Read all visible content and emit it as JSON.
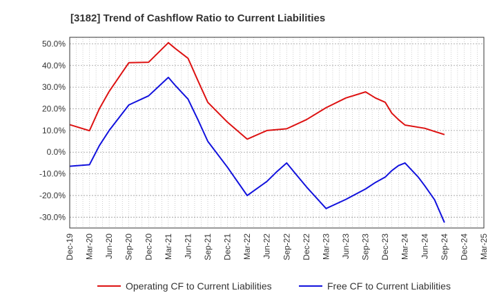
{
  "chart_data": {
    "type": "line",
    "title": "[3182]  Trend of Cashflow Ratio to Current Liabilities",
    "xlabel": "",
    "ylabel": "",
    "ylim": [
      -35,
      53
    ],
    "yticks": [
      50,
      40,
      30,
      20,
      10,
      0,
      -10,
      -20,
      -30
    ],
    "ytick_labels": [
      "50.0%",
      "40.0%",
      "30.0%",
      "20.0%",
      "10.0%",
      "0.0%",
      "-10.0%",
      "-20.0%",
      "-30.0%"
    ],
    "x": [
      "Dec-19",
      "Mar-20",
      "Jun-20",
      "Sep-20",
      "Dec-20",
      "Mar-21",
      "Jun-21",
      "Sep-21",
      "Dec-21",
      "Mar-22",
      "Jun-22",
      "Sep-22",
      "Dec-22",
      "Mar-23",
      "Jun-23",
      "Sep-23",
      "Dec-23",
      "Mar-24",
      "Jun-24",
      "Sep-24",
      "Dec-24",
      "Mar-25"
    ],
    "grid": true,
    "legend_position": "bottom",
    "series": [
      {
        "name": "Operating CF to Current Liabilities",
        "color": "#dd1111",
        "points": [
          [
            0,
            12.7
          ],
          [
            1,
            9.9
          ],
          [
            1.5,
            20.0
          ],
          [
            2,
            28.0
          ],
          [
            3,
            41.3
          ],
          [
            4,
            41.5
          ],
          [
            5,
            50.5
          ],
          [
            5.33,
            48.0
          ],
          [
            6,
            43.3
          ],
          [
            6.5,
            33.0
          ],
          [
            7,
            23.0
          ],
          [
            8,
            13.8
          ],
          [
            9,
            6.0
          ],
          [
            10,
            10.0
          ],
          [
            11,
            10.8
          ],
          [
            12,
            15.0
          ],
          [
            13,
            20.5
          ],
          [
            14,
            25.0
          ],
          [
            15,
            27.8
          ],
          [
            15.5,
            25.0
          ],
          [
            16,
            23.0
          ],
          [
            16.33,
            18.0
          ],
          [
            16.67,
            15.0
          ],
          [
            17,
            12.5
          ],
          [
            18,
            11.0
          ],
          [
            19,
            8.1
          ]
        ]
      },
      {
        "name": "Free CF to Current Liabilities",
        "color": "#1111dd",
        "points": [
          [
            0,
            -6.5
          ],
          [
            1,
            -5.8
          ],
          [
            1.5,
            3.0
          ],
          [
            2,
            10.0
          ],
          [
            3,
            21.8
          ],
          [
            4,
            26.0
          ],
          [
            5,
            34.5
          ],
          [
            5.33,
            31.0
          ],
          [
            6,
            24.5
          ],
          [
            6.5,
            15.0
          ],
          [
            7,
            5.0
          ],
          [
            8,
            -7.0
          ],
          [
            9,
            -20.0
          ],
          [
            10,
            -13.5
          ],
          [
            10.5,
            -9.0
          ],
          [
            11,
            -5.0
          ],
          [
            11.5,
            -10.5
          ],
          [
            12,
            -16.0
          ],
          [
            13,
            -26.0
          ],
          [
            14,
            -21.8
          ],
          [
            15,
            -17.0
          ],
          [
            15.5,
            -14.0
          ],
          [
            16,
            -11.5
          ],
          [
            16.33,
            -8.5
          ],
          [
            16.67,
            -6.2
          ],
          [
            17,
            -5.0
          ],
          [
            17.67,
            -11.5
          ],
          [
            18,
            -15.5
          ],
          [
            18.5,
            -22.0
          ],
          [
            19,
            -32.5
          ]
        ]
      }
    ]
  }
}
